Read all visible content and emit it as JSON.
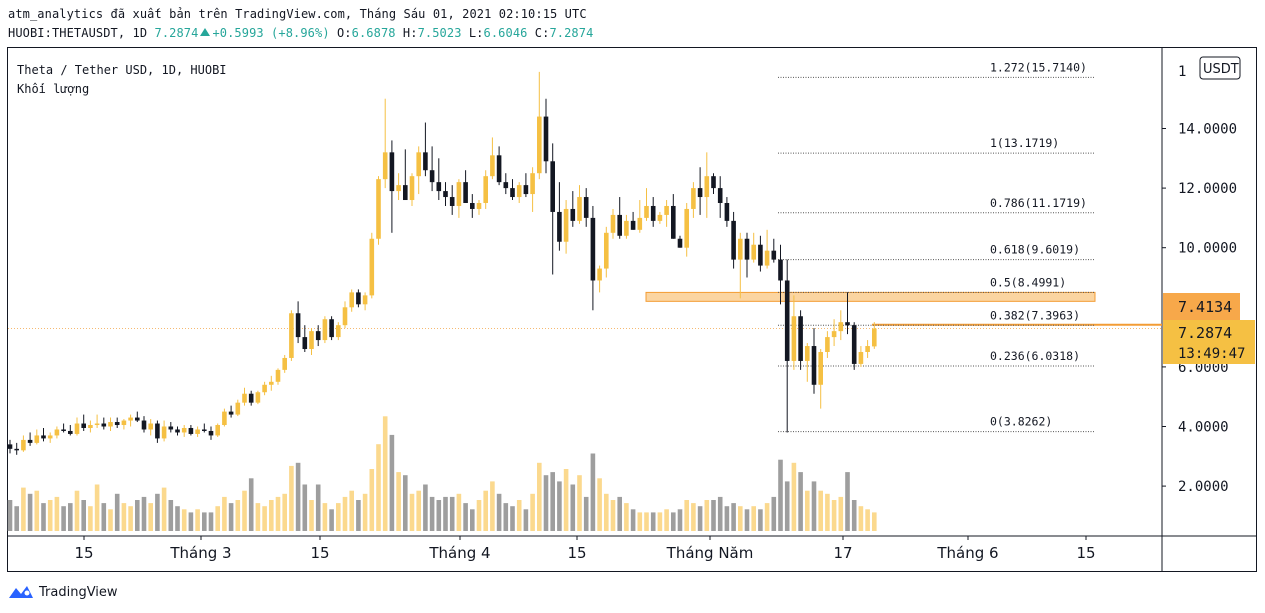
{
  "header": {
    "publisher_line": "atm_analytics đã xuất bản trên TradingView.com, Tháng Sáu 01, 2021 02:10:15 UTC",
    "symbol": "HUOBI:THETAUSDT, 1D",
    "last": "7.2874",
    "change": "+0.5993 (+8.96%)",
    "o_label": "O:",
    "o": "6.6878",
    "h_label": "H:",
    "h": "7.5023",
    "l_label": "L:",
    "l": "6.6046",
    "c_label": "C:",
    "c": "7.2874"
  },
  "legend": {
    "title": "Theta / Tether USD, 1D, HUOBI",
    "volume_label": "Khối lượng"
  },
  "price_axis": {
    "currency": "USDT",
    "top_partial": "1",
    "ticks": [
      "14.0000",
      "12.0000",
      "10.0000",
      "6.0000",
      "4.0000",
      "2.0000"
    ],
    "price_label_1": "7.4134",
    "price_label_2": "7.2874",
    "countdown": "13:49:47"
  },
  "time_axis": {
    "labels": [
      "15",
      "Tháng 3",
      "15",
      "Tháng 4",
      "15",
      "Tháng Năm",
      "17",
      "Tháng 6",
      "15"
    ]
  },
  "branding": {
    "name": "TradingView"
  },
  "colors": {
    "up": "#f5c043",
    "down": "#131722",
    "vol_up": "#fbd98e",
    "vol_down": "#9e9e9e",
    "fib_line": "#555555",
    "zone_fill": "#fbd5a1",
    "zone_border": "#f39c34",
    "level_line": "#f39c34",
    "price_badge": "#f5c043",
    "level_badge": "#f7a84a"
  },
  "chart_data": {
    "type": "candlestick",
    "title": "Theta / Tether USD, 1D, HUOBI",
    "ylabel": "USDT",
    "ylim": [
      0.5,
      16.5
    ],
    "fib_levels": [
      {
        "ratio_label": "1.272(15.7140)",
        "price": 15.714
      },
      {
        "ratio_label": "1(13.1719)",
        "price": 13.1719
      },
      {
        "ratio_label": "0.786(11.1719)",
        "price": 11.1719
      },
      {
        "ratio_label": "0.618(9.6019)",
        "price": 9.6019
      },
      {
        "ratio_label": "0.5(8.4991)",
        "price": 8.4991
      },
      {
        "ratio_label": "0.382(7.3963)",
        "price": 7.3963
      },
      {
        "ratio_label": "0.236(6.0318)",
        "price": 6.0318
      },
      {
        "ratio_label": "0(3.8262)",
        "price": 3.8262
      }
    ],
    "resistance_zone": [
      8.2,
      8.5
    ],
    "horizontal_level": 7.4134,
    "current_price": 7.2874,
    "candles": [
      [
        3.4,
        3.55,
        3.1,
        3.25,
        1.0
      ],
      [
        3.25,
        3.45,
        3.05,
        3.2,
        0.8
      ],
      [
        3.2,
        3.7,
        3.15,
        3.55,
        1.4
      ],
      [
        3.55,
        3.8,
        3.35,
        3.45,
        1.2
      ],
      [
        3.45,
        3.9,
        3.4,
        3.7,
        1.3
      ],
      [
        3.7,
        3.95,
        3.5,
        3.6,
        0.9
      ],
      [
        3.6,
        3.8,
        3.45,
        3.7,
        1.0
      ],
      [
        3.7,
        4.0,
        3.6,
        3.9,
        1.1
      ],
      [
        3.9,
        4.1,
        3.8,
        3.85,
        0.8
      ],
      [
        3.85,
        4.05,
        3.7,
        3.75,
        0.9
      ],
      [
        3.75,
        4.3,
        3.7,
        4.1,
        1.3
      ],
      [
        4.1,
        4.4,
        3.85,
        3.95,
        1.0
      ],
      [
        3.95,
        4.2,
        3.8,
        4.05,
        0.8
      ],
      [
        4.05,
        4.4,
        3.95,
        4.1,
        1.5
      ],
      [
        4.1,
        4.3,
        3.9,
        4.0,
        0.9
      ],
      [
        4.0,
        4.3,
        3.85,
        4.15,
        0.7
      ],
      [
        4.15,
        4.3,
        3.95,
        4.05,
        1.2
      ],
      [
        4.05,
        4.25,
        3.9,
        4.2,
        0.9
      ],
      [
        4.2,
        4.4,
        4.0,
        4.3,
        0.8
      ],
      [
        4.3,
        4.5,
        4.15,
        4.2,
        1.0
      ],
      [
        4.2,
        4.35,
        3.8,
        3.9,
        1.1
      ],
      [
        3.9,
        4.25,
        3.7,
        4.1,
        0.9
      ],
      [
        4.1,
        4.2,
        3.45,
        3.6,
        1.2
      ],
      [
        3.6,
        4.2,
        3.5,
        4.0,
        1.4
      ],
      [
        4.0,
        4.15,
        3.8,
        3.9,
        1.0
      ],
      [
        3.9,
        4.0,
        3.7,
        3.8,
        0.8
      ],
      [
        3.8,
        4.05,
        3.65,
        3.95,
        0.7
      ],
      [
        3.95,
        4.05,
        3.7,
        3.75,
        0.6
      ],
      [
        3.75,
        4.0,
        3.65,
        3.9,
        0.7
      ],
      [
        3.9,
        4.1,
        3.8,
        3.85,
        0.6
      ],
      [
        3.85,
        4.0,
        3.55,
        3.7,
        0.6
      ],
      [
        3.7,
        4.1,
        3.65,
        4.05,
        0.8
      ],
      [
        4.05,
        4.6,
        4.0,
        4.5,
        1.1
      ],
      [
        4.5,
        4.7,
        4.3,
        4.4,
        0.9
      ],
      [
        4.4,
        4.9,
        4.35,
        4.8,
        1.0
      ],
      [
        4.8,
        5.3,
        4.7,
        5.1,
        1.3
      ],
      [
        5.1,
        5.2,
        4.7,
        4.8,
        1.7
      ],
      [
        4.8,
        5.2,
        4.75,
        5.15,
        0.9
      ],
      [
        5.15,
        5.5,
        5.05,
        5.4,
        0.8
      ],
      [
        5.4,
        5.7,
        5.2,
        5.5,
        1.0
      ],
      [
        5.5,
        5.95,
        5.4,
        5.9,
        1.1
      ],
      [
        5.9,
        6.4,
        5.8,
        6.3,
        1.2
      ],
      [
        6.3,
        7.9,
        6.2,
        7.8,
        2.1
      ],
      [
        7.8,
        8.2,
        6.8,
        7.0,
        2.2
      ],
      [
        7.0,
        7.4,
        6.5,
        6.6,
        1.5
      ],
      [
        6.6,
        7.3,
        6.4,
        7.2,
        1.0
      ],
      [
        7.2,
        7.4,
        6.7,
        6.9,
        1.5
      ],
      [
        6.9,
        7.7,
        6.8,
        7.6,
        0.9
      ],
      [
        7.6,
        7.7,
        6.9,
        7.0,
        0.7
      ],
      [
        7.0,
        7.5,
        6.9,
        7.4,
        0.9
      ],
      [
        7.4,
        8.2,
        7.3,
        8.0,
        1.1
      ],
      [
        8.0,
        8.6,
        7.85,
        8.5,
        1.3
      ],
      [
        8.5,
        8.6,
        8.0,
        8.1,
        1.0
      ],
      [
        8.1,
        8.5,
        7.9,
        8.4,
        1.2
      ],
      [
        8.4,
        10.5,
        8.3,
        10.3,
        2.0
      ],
      [
        10.3,
        12.4,
        10.1,
        12.3,
        2.8
      ],
      [
        12.3,
        15.0,
        12.0,
        13.2,
        3.7
      ],
      [
        13.2,
        13.6,
        10.5,
        11.9,
        3.1
      ],
      [
        11.9,
        12.5,
        11.6,
        12.1,
        1.9
      ],
      [
        12.1,
        13.3,
        11.7,
        11.6,
        1.8
      ],
      [
        11.6,
        12.5,
        11.4,
        12.4,
        1.2
      ],
      [
        12.4,
        13.4,
        11.8,
        13.2,
        1.3
      ],
      [
        13.2,
        14.2,
        12.4,
        12.6,
        1.5
      ],
      [
        12.6,
        13.4,
        11.9,
        12.2,
        1.1
      ],
      [
        12.2,
        13.0,
        11.6,
        11.9,
        1.0
      ],
      [
        11.9,
        12.2,
        11.4,
        11.7,
        1.1
      ],
      [
        11.7,
        12.1,
        11.1,
        11.4,
        1.1
      ],
      [
        11.4,
        12.3,
        11.0,
        12.2,
        1.2
      ],
      [
        12.2,
        12.6,
        11.5,
        11.5,
        0.9
      ],
      [
        11.5,
        11.8,
        11.0,
        11.3,
        0.7
      ],
      [
        11.3,
        11.6,
        11.1,
        11.5,
        1.0
      ],
      [
        11.5,
        12.6,
        11.3,
        12.4,
        1.3
      ],
      [
        12.4,
        13.7,
        12.3,
        13.1,
        1.6
      ],
      [
        13.1,
        13.4,
        12.1,
        12.2,
        1.2
      ],
      [
        12.2,
        12.5,
        11.8,
        12.0,
        0.9
      ],
      [
        12.0,
        12.3,
        11.6,
        11.7,
        0.8
      ],
      [
        11.7,
        12.2,
        11.5,
        12.1,
        1.0
      ],
      [
        12.1,
        12.5,
        11.7,
        11.8,
        0.7
      ],
      [
        11.8,
        12.7,
        11.2,
        12.5,
        1.2
      ],
      [
        12.5,
        15.9,
        12.3,
        14.4,
        2.2
      ],
      [
        14.4,
        15.0,
        12.5,
        12.9,
        1.8
      ],
      [
        12.9,
        13.5,
        9.1,
        11.2,
        1.9
      ],
      [
        11.2,
        12.2,
        9.9,
        10.2,
        1.6
      ],
      [
        10.2,
        11.6,
        9.8,
        11.3,
        2.0
      ],
      [
        11.3,
        11.9,
        10.7,
        10.9,
        1.5
      ],
      [
        10.9,
        12.1,
        10.8,
        11.7,
        1.8
      ],
      [
        11.7,
        12.0,
        10.7,
        11.0,
        1.1
      ],
      [
        11.0,
        11.4,
        7.9,
        8.9,
        2.5
      ],
      [
        8.9,
        9.4,
        8.5,
        9.3,
        1.7
      ],
      [
        9.3,
        10.7,
        9.0,
        10.5,
        1.2
      ],
      [
        10.5,
        11.3,
        10.3,
        11.1,
        1.0
      ],
      [
        11.1,
        11.7,
        10.3,
        10.4,
        1.1
      ],
      [
        10.4,
        11.1,
        10.3,
        10.9,
        0.9
      ],
      [
        10.9,
        11.2,
        10.6,
        10.6,
        0.7
      ],
      [
        10.6,
        11.6,
        10.5,
        11.0,
        0.6
      ],
      [
        11.0,
        12.0,
        10.9,
        11.4,
        0.6
      ],
      [
        11.4,
        11.7,
        10.7,
        10.9,
        0.6
      ],
      [
        10.9,
        11.2,
        10.8,
        11.1,
        0.6
      ],
      [
        11.1,
        11.6,
        10.7,
        11.4,
        0.7
      ],
      [
        11.4,
        11.8,
        10.3,
        10.3,
        0.6
      ],
      [
        10.3,
        10.4,
        10.0,
        10.0,
        0.7
      ],
      [
        10.0,
        11.5,
        9.7,
        11.3,
        1.0
      ],
      [
        11.3,
        12.2,
        11.0,
        12.0,
        0.9
      ],
      [
        12.0,
        12.7,
        11.1,
        11.7,
        0.8
      ],
      [
        11.7,
        13.2,
        11.0,
        12.4,
        1.0
      ],
      [
        12.4,
        12.5,
        11.8,
        12.0,
        1.0
      ],
      [
        12.0,
        12.4,
        11.0,
        11.5,
        1.1
      ],
      [
        11.5,
        11.7,
        10.7,
        10.9,
        0.8
      ],
      [
        10.9,
        11.2,
        9.3,
        9.6,
        0.9
      ],
      [
        9.6,
        10.5,
        8.3,
        10.3,
        0.8
      ],
      [
        10.3,
        10.5,
        9.0,
        9.6,
        0.7
      ],
      [
        9.6,
        10.5,
        9.5,
        10.1,
        0.8
      ],
      [
        10.1,
        10.4,
        9.2,
        9.4,
        0.7
      ],
      [
        9.4,
        10.6,
        9.3,
        9.9,
        0.9
      ],
      [
        9.9,
        10.3,
        9.5,
        9.6,
        1.1
      ],
      [
        9.6,
        10.1,
        8.1,
        8.9,
        2.3
      ],
      [
        8.9,
        9.6,
        3.8,
        6.2,
        1.6
      ],
      [
        6.2,
        8.4,
        5.9,
        7.7,
        2.2
      ],
      [
        7.7,
        7.9,
        5.9,
        6.2,
        1.9
      ],
      [
        6.2,
        6.8,
        5.5,
        6.7,
        1.3
      ],
      [
        6.7,
        7.3,
        5.1,
        5.4,
        1.6
      ],
      [
        5.4,
        6.6,
        4.6,
        6.5,
        1.3
      ],
      [
        6.5,
        7.2,
        6.3,
        7.0,
        1.2
      ],
      [
        7.0,
        7.6,
        6.7,
        7.2,
        1.0
      ],
      [
        7.2,
        7.9,
        6.9,
        7.5,
        1.1
      ],
      [
        7.5,
        8.5,
        7.1,
        7.4,
        1.9
      ],
      [
        7.4,
        7.5,
        5.9,
        6.1,
        1.0
      ],
      [
        6.1,
        6.7,
        6.0,
        6.5,
        0.8
      ],
      [
        6.5,
        6.9,
        6.3,
        6.7,
        0.7
      ],
      [
        6.6878,
        7.5023,
        6.6046,
        7.2874,
        0.6
      ]
    ]
  }
}
